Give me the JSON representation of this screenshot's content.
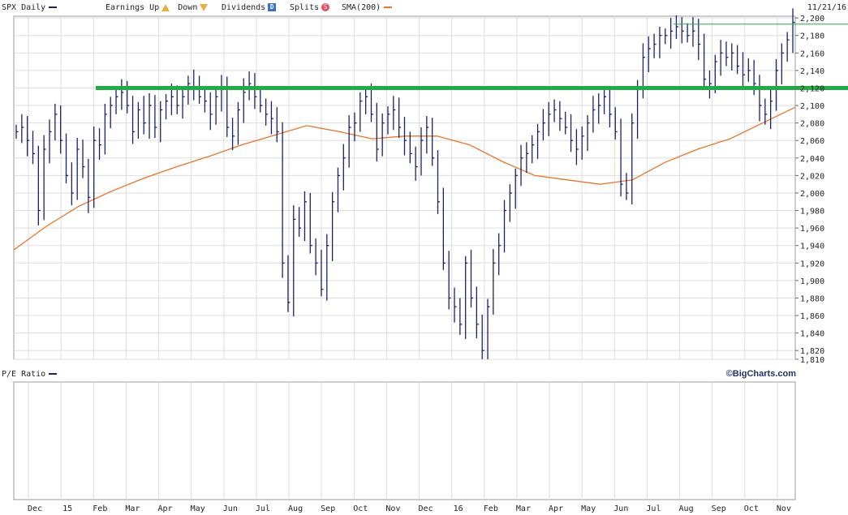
{
  "header": {
    "symbol_label": "SPX Daily",
    "earnings_label": "Earnings Up",
    "down_label": "Down",
    "dividends_label": "Dividends",
    "dividends_marker": "D",
    "splits_label": "Splits",
    "splits_marker": "S",
    "sma_label": "SMA(200)",
    "date_label": "11/21/16"
  },
  "lower_panel": {
    "title": "P/E Ratio"
  },
  "watermark": "©BigCharts.com",
  "colors": {
    "price": "#1a2266",
    "sma": "#e8742a",
    "trend_line": "#22aa44",
    "grid": "#dddddd",
    "earnings_marker": "#e8b040",
    "dividends_marker": "#3a6fcc",
    "splits_marker": "#e05060"
  },
  "chart_data": {
    "type": "line",
    "x_labels": [
      "Dec",
      "15",
      "Feb",
      "Mar",
      "Apr",
      "May",
      "Jun",
      "Jul",
      "Aug",
      "Sep",
      "Oct",
      "Nov",
      "Dec",
      "16",
      "Feb",
      "Mar",
      "Apr",
      "May",
      "Jun",
      "Jul",
      "Aug",
      "Sep",
      "Oct",
      "Nov"
    ],
    "y_ticks": [
      1810,
      1820,
      1840,
      1860,
      1880,
      1900,
      1920,
      1940,
      1960,
      1980,
      2000,
      2020,
      2040,
      2060,
      2080,
      2100,
      2120,
      2140,
      2160,
      2180,
      2200
    ],
    "y_range": [
      1810,
      2202
    ],
    "series": [
      {
        "name": "SPX Daily",
        "style": "hlc-bars",
        "points": [
          [
            "Dec",
            2070
          ],
          [
            "",
            2075
          ],
          [
            "",
            2060
          ],
          [
            "",
            2045
          ],
          [
            "",
            1980
          ],
          [
            "",
            2050
          ],
          [
            "",
            2070
          ],
          [
            "15",
            2090
          ],
          [
            "",
            2060
          ],
          [
            "",
            2020
          ],
          [
            "",
            2000
          ],
          [
            "",
            2050
          ],
          [
            "",
            2030
          ],
          [
            "",
            1995
          ],
          [
            "",
            2060
          ],
          [
            "Feb",
            2055
          ],
          [
            "",
            2090
          ],
          [
            "",
            2100
          ],
          [
            "",
            2110
          ],
          [
            "Mar",
            2115
          ],
          [
            "",
            2100
          ],
          [
            "",
            2070
          ],
          [
            "",
            2095
          ],
          [
            "",
            2080
          ],
          [
            "Apr",
            2100
          ],
          [
            "",
            2075
          ],
          [
            "",
            2095
          ],
          [
            "",
            2105
          ],
          [
            "",
            2110
          ],
          [
            "May",
            2100
          ],
          [
            "",
            2110
          ],
          [
            "",
            2125
          ],
          [
            "",
            2120
          ],
          [
            "Jun",
            2110
          ],
          [
            "",
            2105
          ],
          [
            "",
            2090
          ],
          [
            "",
            2110
          ],
          [
            "",
            2120
          ],
          [
            "Jul",
            2075
          ],
          [
            "",
            2065
          ],
          [
            "",
            2095
          ],
          [
            "",
            2115
          ],
          [
            "",
            2125
          ],
          [
            "Aug",
            2110
          ],
          [
            "",
            2100
          ],
          [
            "",
            2090
          ],
          [
            "",
            2085
          ],
          [
            "",
            2070
          ],
          [
            "",
            1920
          ],
          [
            "",
            1875
          ],
          [
            "Sep",
            1970
          ],
          [
            "",
            1960
          ],
          [
            "",
            1990
          ],
          [
            "",
            1940
          ],
          [
            "",
            1920
          ],
          [
            "",
            1890
          ],
          [
            "Oct",
            1940
          ],
          [
            "",
            1990
          ],
          [
            "",
            2020
          ],
          [
            "",
            2040
          ],
          [
            "",
            2075
          ],
          [
            "",
            2080
          ],
          [
            "Nov",
            2105
          ],
          [
            "",
            2110
          ],
          [
            "",
            2090
          ],
          [
            "",
            2050
          ],
          [
            "",
            2080
          ],
          [
            "",
            2090
          ],
          [
            "Dec",
            2095
          ],
          [
            "",
            2075
          ],
          [
            "",
            2060
          ],
          [
            "",
            2045
          ],
          [
            "",
            2030
          ],
          [
            "",
            2060
          ],
          [
            "",
            2075
          ],
          [
            "16",
            2040
          ],
          [
            "",
            1990
          ],
          [
            "",
            1920
          ],
          [
            "",
            1880
          ],
          [
            "",
            1870
          ],
          [
            "",
            1850
          ],
          [
            "",
            1920
          ],
          [
            "",
            1880
          ],
          [
            "Feb",
            1850
          ],
          [
            "",
            1820
          ],
          [
            "",
            1870
          ],
          [
            "",
            1920
          ],
          [
            "",
            1940
          ],
          [
            "Mar",
            1980
          ],
          [
            "",
            2000
          ],
          [
            "",
            2020
          ],
          [
            "",
            2040
          ],
          [
            "",
            2045
          ],
          [
            "",
            2055
          ],
          [
            "Apr",
            2070
          ],
          [
            "",
            2080
          ],
          [
            "",
            2090
          ],
          [
            "",
            2095
          ],
          [
            "",
            2085
          ],
          [
            "May",
            2075
          ],
          [
            "",
            2060
          ],
          [
            "",
            2050
          ],
          [
            "",
            2065
          ],
          [
            "",
            2080
          ],
          [
            "Jun",
            2095
          ],
          [
            "",
            2100
          ],
          [
            "",
            2110
          ],
          [
            "",
            2090
          ],
          [
            "",
            2070
          ],
          [
            "",
            2010
          ],
          [
            "",
            2000
          ],
          [
            "Jul",
            2080
          ],
          [
            "",
            2120
          ],
          [
            "",
            2155
          ],
          [
            "",
            2165
          ],
          [
            "",
            2170
          ],
          [
            "Aug",
            2180
          ],
          [
            "",
            2180
          ],
          [
            "",
            2185
          ],
          [
            "",
            2190
          ],
          [
            "",
            2185
          ],
          [
            "",
            2180
          ],
          [
            "",
            2185
          ],
          [
            "Sep",
            2170
          ],
          [
            "",
            2130
          ],
          [
            "",
            2125
          ],
          [
            "",
            2150
          ],
          [
            "",
            2160
          ],
          [
            "Oct",
            2155
          ],
          [
            "",
            2160
          ],
          [
            "",
            2145
          ],
          [
            "",
            2135
          ],
          [
            "",
            2140
          ],
          [
            "",
            2125
          ],
          [
            "Nov",
            2100
          ],
          [
            "",
            2090
          ],
          [
            "",
            2105
          ],
          [
            "",
            2140
          ],
          [
            "",
            2160
          ],
          [
            "",
            2175
          ],
          [
            "",
            2195
          ]
        ]
      },
      {
        "name": "SMA(200)",
        "style": "line",
        "points": [
          [
            "Dec",
            1935
          ],
          [
            "15",
            1962
          ],
          [
            "Feb",
            1985
          ],
          [
            "Mar",
            2002
          ],
          [
            "Apr",
            2017
          ],
          [
            "May",
            2030
          ],
          [
            "Jun",
            2042
          ],
          [
            "Jul",
            2055
          ],
          [
            "Aug",
            2066
          ],
          [
            "Sep",
            2077
          ],
          [
            "Oct",
            2070
          ],
          [
            "Nov",
            2062
          ],
          [
            "Dec",
            2065
          ],
          [
            "16",
            2065
          ],
          [
            "Feb",
            2055
          ],
          [
            "Mar",
            2036
          ],
          [
            "Apr",
            2020
          ],
          [
            "May",
            2015
          ],
          [
            "Jun",
            2010
          ],
          [
            "Jul",
            2015
          ],
          [
            "Aug",
            2035
          ],
          [
            "Sep",
            2050
          ],
          [
            "Oct",
            2062
          ],
          [
            "Nov",
            2080
          ],
          [
            "",
            2098
          ]
        ]
      }
    ],
    "annotations": {
      "horizontal_line": 2120,
      "recent_high_line": 2193
    },
    "grid": true,
    "legend_placement": "top-left"
  }
}
